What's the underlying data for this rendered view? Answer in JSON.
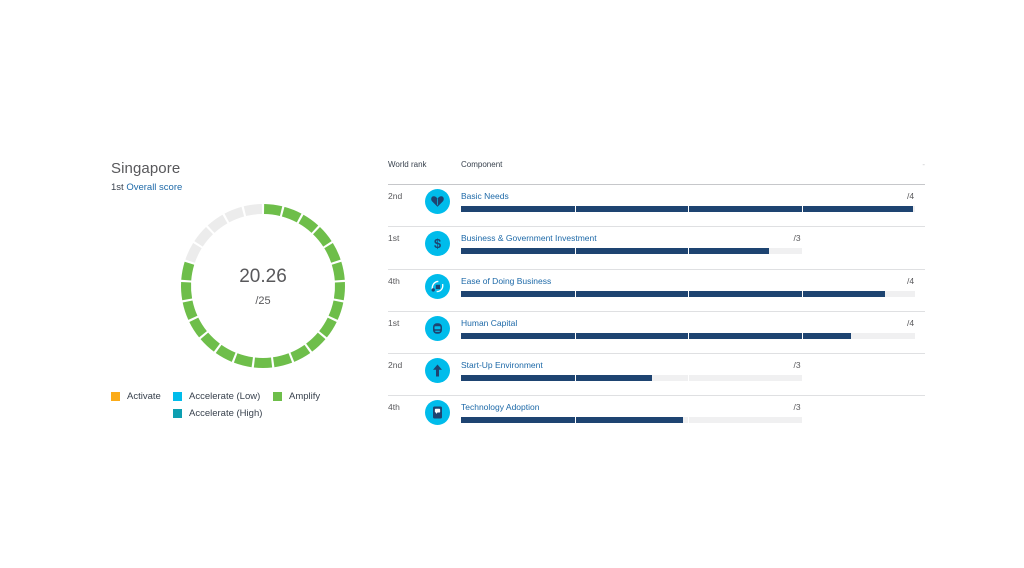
{
  "country": {
    "name": "Singapore",
    "overall_rank": "1st",
    "overall_link": "Overall score",
    "score": "20.26",
    "score_max": "/25",
    "score_value": 20.26,
    "score_total": 25,
    "ring_color": "#6ebe4a",
    "ring_empty_color": "#ececec"
  },
  "legend": [
    {
      "label": "Activate",
      "color": "#fbab18"
    },
    {
      "label": "Accelerate (Low)",
      "color": "#00bceb"
    },
    {
      "label": "Amplify",
      "color": "#6ebe4a"
    },
    {
      "label": "Accelerate (High)",
      "color": "#0d9fb1"
    }
  ],
  "table": {
    "header_rank": "World rank",
    "header_component": "Component",
    "header_extra": "-",
    "rows": [
      {
        "rank": "2nd",
        "component": "Basic Needs",
        "max_label": "/4",
        "max": 4,
        "value": 3.98,
        "icon": "heart-icon"
      },
      {
        "rank": "1st",
        "component": "Business & Government Investment",
        "max_label": "/3",
        "max": 3,
        "value": 2.71,
        "icon": "dollar-icon"
      },
      {
        "rank": "4th",
        "component": "Ease of Doing Business",
        "max_label": "/4",
        "max": 4,
        "value": 3.74,
        "icon": "ease-of-business-icon"
      },
      {
        "rank": "1st",
        "component": "Human Capital",
        "max_label": "/4",
        "max": 4,
        "value": 3.44,
        "icon": "human-capital-icon"
      },
      {
        "rank": "2nd",
        "component": "Start-Up Environment",
        "max_label": "/3",
        "max": 3,
        "value": 1.68,
        "icon": "arrow-up-icon"
      },
      {
        "rank": "4th",
        "component": "Technology Adoption",
        "max_label": "/3",
        "max": 3,
        "value": 1.96,
        "icon": "phone-chat-icon"
      }
    ],
    "bar_color": "#1e4471",
    "track_color": "#f0f0f1"
  }
}
